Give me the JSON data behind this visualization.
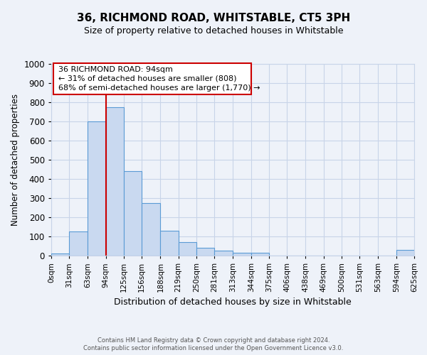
{
  "title": "36, RICHMOND ROAD, WHITSTABLE, CT5 3PH",
  "subtitle": "Size of property relative to detached houses in Whitstable",
  "xlabel": "Distribution of detached houses by size in Whitstable",
  "ylabel": "Number of detached properties",
  "bin_edges": [
    0,
    31,
    63,
    94,
    125,
    156,
    188,
    219,
    250,
    281,
    313,
    344,
    375,
    406,
    438,
    469,
    500,
    531,
    563,
    594,
    625
  ],
  "bar_heights": [
    10,
    125,
    700,
    775,
    440,
    275,
    130,
    70,
    40,
    25,
    15,
    15,
    0,
    0,
    0,
    0,
    0,
    0,
    0,
    30
  ],
  "bar_facecolor": "#c9d9f0",
  "bar_edgecolor": "#5b9bd5",
  "vline_x": 94,
  "vline_color": "#cc0000",
  "ylim": [
    0,
    1000
  ],
  "yticks": [
    0,
    100,
    200,
    300,
    400,
    500,
    600,
    700,
    800,
    900,
    1000
  ],
  "xlim": [
    0,
    625
  ],
  "annotation_text_line1": "36 RICHMOND ROAD: 94sqm",
  "annotation_text_line2": "← 31% of detached houses are smaller (808)",
  "annotation_text_line3": "68% of semi-detached houses are larger (1,770) →",
  "annotation_box_color": "#cc0000",
  "bg_color": "#eef2f9",
  "grid_color": "#c8d4e8",
  "footer_line1": "Contains HM Land Registry data © Crown copyright and database right 2024.",
  "footer_line2": "Contains public sector information licensed under the Open Government Licence v3.0."
}
